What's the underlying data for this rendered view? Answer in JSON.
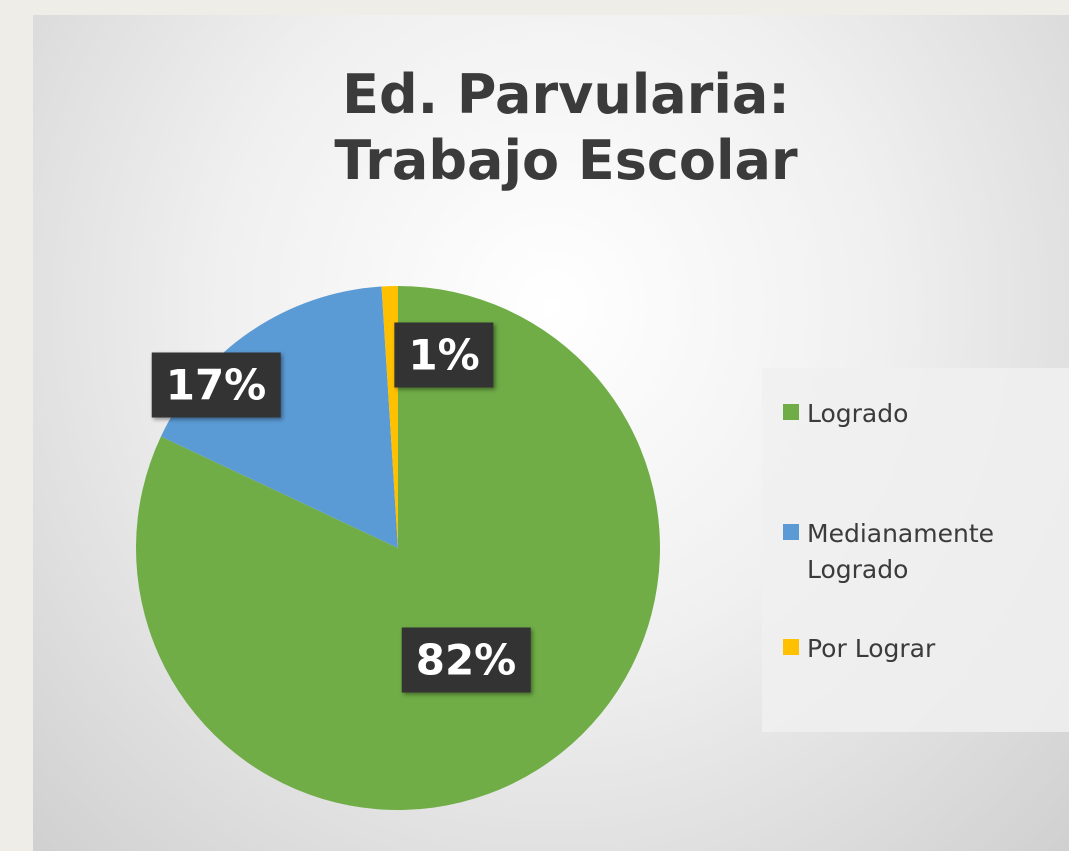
{
  "chart_data": {
    "type": "pie",
    "title": "Ed. Parvularia: Trabajo Escolar",
    "categories": [
      "Logrado",
      "Medianamente Logrado",
      "Por Lograr"
    ],
    "values": [
      82,
      17,
      1
    ],
    "value_labels": [
      "82%",
      "17%",
      "1%"
    ],
    "colors": [
      "#70ad47",
      "#5b9bd5",
      "#ffc000"
    ],
    "legend": "right"
  }
}
